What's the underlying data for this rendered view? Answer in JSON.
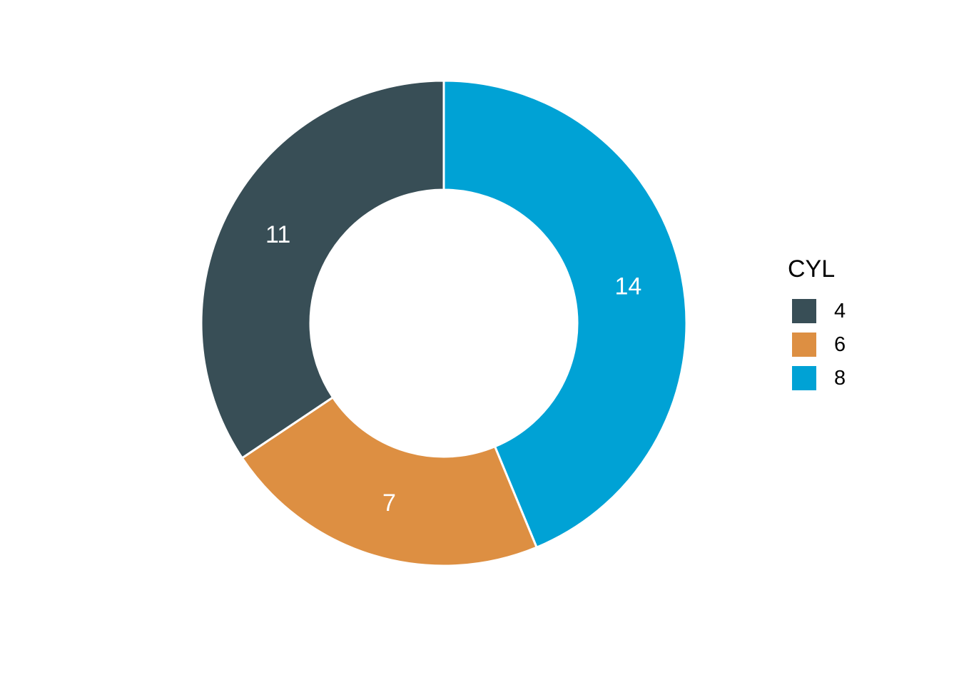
{
  "chart_data": {
    "type": "pie",
    "variant": "donut",
    "legend_title": "CYL",
    "legend_position": "right",
    "categories": [
      "4",
      "6",
      "8"
    ],
    "values": [
      11,
      7,
      14
    ],
    "labels": [
      "11",
      "7",
      "14"
    ],
    "colors": [
      "#384e56",
      "#dd8f42",
      "#00a2d5"
    ],
    "label_color": "#ffffff",
    "slice_border_color": "#ffffff"
  }
}
